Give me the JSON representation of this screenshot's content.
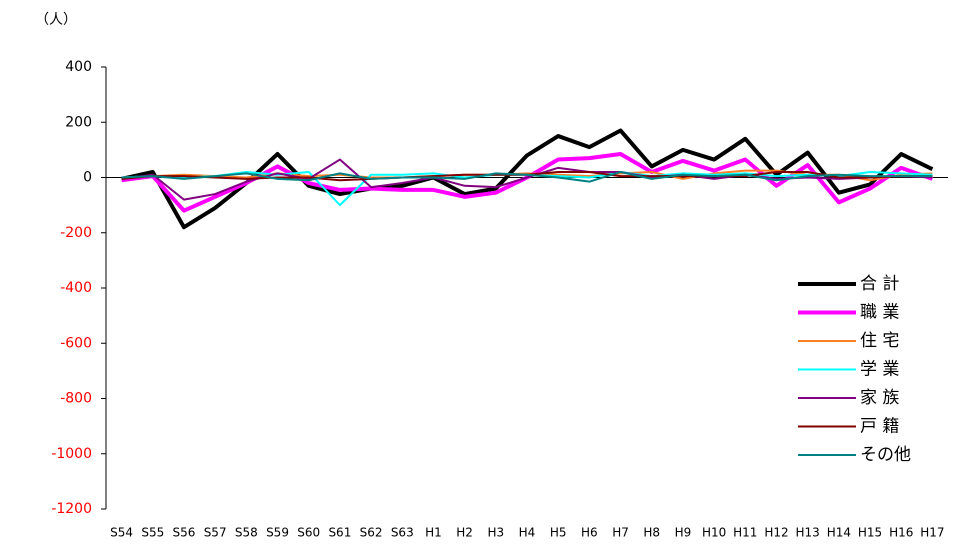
{
  "chart_data": {
    "type": "line",
    "y_unit_label": "（人）",
    "categories": [
      "S54",
      "S55",
      "S56",
      "S57",
      "S58",
      "S59",
      "S60",
      "S61",
      "S62",
      "S63",
      "H1",
      "H2",
      "H3",
      "H4",
      "H5",
      "H6",
      "H7",
      "H8",
      "H9",
      "H10",
      "H11",
      "H12",
      "H13",
      "H14",
      "H15",
      "H16",
      "H17"
    ],
    "ylim": [
      -1200,
      400
    ],
    "yticks": [
      -1200,
      -1000,
      -800,
      -600,
      -400,
      -200,
      0,
      200,
      400
    ],
    "negative_tick_color": "#ff0000",
    "legend": "lower right",
    "series": [
      {
        "name": "合 計",
        "color": "#000000",
        "width": 4,
        "values": [
          -5,
          20,
          -180,
          -110,
          -20,
          85,
          -30,
          -60,
          -40,
          -30,
          0,
          -60,
          -40,
          80,
          150,
          110,
          170,
          40,
          100,
          65,
          140,
          10,
          90,
          -55,
          -25,
          85,
          30
        ]
      },
      {
        "name": "職 業",
        "color": "#ff00ff",
        "width": 4,
        "values": [
          -10,
          5,
          -120,
          -70,
          -20,
          40,
          -20,
          -45,
          -40,
          -45,
          -45,
          -70,
          -55,
          0,
          65,
          70,
          85,
          20,
          60,
          25,
          65,
          -30,
          45,
          -90,
          -40,
          35,
          -5
        ]
      },
      {
        "name": "住 宅",
        "color": "#ff7f27",
        "width": 2,
        "values": [
          0,
          5,
          10,
          5,
          0,
          15,
          5,
          10,
          0,
          0,
          5,
          10,
          10,
          15,
          10,
          5,
          15,
          20,
          -5,
          15,
          25,
          25,
          10,
          10,
          -10,
          10,
          15
        ]
      },
      {
        "name": "学 業",
        "color": "#00ffff",
        "width": 2,
        "values": [
          0,
          5,
          0,
          5,
          20,
          10,
          20,
          -100,
          10,
          10,
          15,
          0,
          10,
          10,
          5,
          0,
          20,
          5,
          15,
          10,
          15,
          5,
          10,
          5,
          20,
          15,
          10
        ]
      },
      {
        "name": "家 族",
        "color": "#800080",
        "width": 2,
        "values": [
          -5,
          10,
          -80,
          -60,
          -15,
          15,
          -5,
          65,
          -35,
          -20,
          0,
          -30,
          -35,
          0,
          35,
          20,
          20,
          0,
          10,
          -5,
          10,
          -5,
          0,
          -5,
          0,
          5,
          0
        ]
      },
      {
        "name": "戸 籍",
        "color": "#800000",
        "width": 2,
        "values": [
          -5,
          5,
          5,
          0,
          -5,
          0,
          0,
          -10,
          -5,
          0,
          5,
          10,
          10,
          10,
          20,
          20,
          5,
          5,
          5,
          5,
          5,
          20,
          20,
          0,
          0,
          5,
          5
        ]
      },
      {
        "name": "その他",
        "color": "#008080",
        "width": 2,
        "values": [
          0,
          5,
          -5,
          5,
          15,
          -5,
          -10,
          15,
          -5,
          0,
          0,
          -5,
          15,
          10,
          0,
          -15,
          20,
          -5,
          10,
          5,
          10,
          -10,
          5,
          10,
          5,
          5,
          5
        ]
      }
    ]
  }
}
